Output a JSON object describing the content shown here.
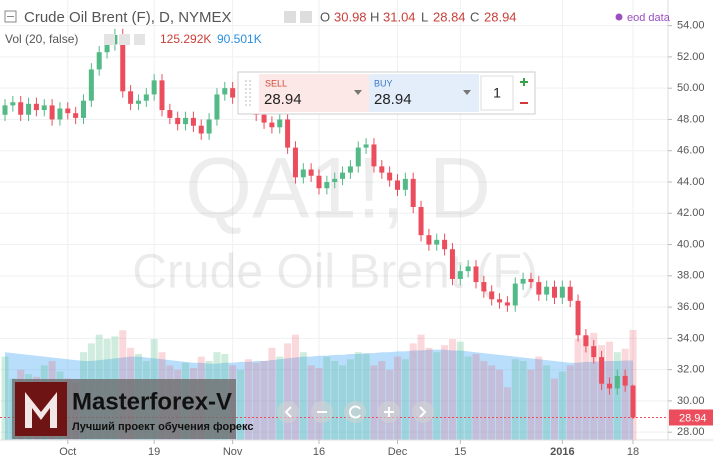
{
  "header": {
    "symbol": "Crude Oil Brent (F), D, NYMEX",
    "o_label": "O",
    "h_label": "H",
    "l_label": "L",
    "c_label": "C",
    "source": "eod data",
    "volume_title": "Vol (20, false)",
    "volume": "125.292K",
    "volume_ma": "90.501K"
  },
  "trade_panel": {
    "sell_label": "SELL",
    "buy_label": "BUY",
    "quantity": "1"
  },
  "watermark": {
    "line1": "QA1!, D",
    "line2": "Crude Oil Brent (F)"
  },
  "logo": {
    "name": "Masterforex-V",
    "tagline": "Лучший проект обучения форекс"
  },
  "chart_data": {
    "type": "candlestick",
    "categories": [
      null,
      null,
      null,
      null,
      null,
      null,
      null,
      null,
      "Oct",
      null,
      null,
      null,
      null,
      null,
      null,
      null,
      null,
      null,
      null,
      "19",
      null,
      null,
      null,
      null,
      null,
      null,
      null,
      null,
      null,
      "Nov",
      null,
      null,
      null,
      null,
      null,
      null,
      null,
      null,
      null,
      null,
      "16",
      null,
      null,
      null,
      null,
      null,
      null,
      null,
      null,
      null,
      "Dec",
      null,
      null,
      null,
      null,
      null,
      null,
      null,
      "15",
      null,
      null,
      null,
      null,
      null,
      null,
      null,
      null,
      null,
      null,
      null,
      null,
      "2016",
      null,
      null,
      null,
      null,
      null,
      null,
      null,
      null,
      "18"
    ],
    "open": [
      48.3,
      48.9,
      49.1,
      48.3,
      49.0,
      48.6,
      48.9,
      48.0,
      48.7,
      48.4,
      48.1,
      49.2,
      51.2,
      52.3,
      52.8,
      53.4,
      49.8,
      49.0,
      49.2,
      49.6,
      50.5,
      48.6,
      48.1,
      47.7,
      48.1,
      47.6,
      47.1,
      48.0,
      49.6,
      50.0,
      49.4,
      49.9,
      48.9,
      48.3,
      47.8,
      47.5,
      48.0,
      46.2,
      44.3,
      44.8,
      44.4,
      43.6,
      44.0,
      44.2,
      44.6,
      45.0,
      46.2,
      46.4,
      45.0,
      44.6,
      44.1,
      43.5,
      44.2,
      42.4,
      40.6,
      40.0,
      40.3,
      39.7,
      37.8,
      38.3,
      38.6,
      37.6,
      37.0,
      36.5,
      36.3,
      36.1,
      37.5,
      37.8,
      37.6,
      36.8,
      37.3,
      36.6,
      37.3,
      36.4,
      34.2,
      33.5,
      32.8,
      31.1,
      30.8,
      31.6,
      30.98
    ],
    "high": [
      49.3,
      49.5,
      49.5,
      49.4,
      49.4,
      49.3,
      49.3,
      49.1,
      49.1,
      48.8,
      49.6,
      51.6,
      52.7,
      53.2,
      53.8,
      53.8,
      50.2,
      49.6,
      50.0,
      50.9,
      50.9,
      49.0,
      48.5,
      48.5,
      48.5,
      48.0,
      48.4,
      50.0,
      50.4,
      50.4,
      50.3,
      50.3,
      49.3,
      48.7,
      48.2,
      48.4,
      48.4,
      46.6,
      45.2,
      45.2,
      44.8,
      44.4,
      44.6,
      45.0,
      45.4,
      46.6,
      46.8,
      46.8,
      45.4,
      45.0,
      44.5,
      44.6,
      44.6,
      42.8,
      41.0,
      40.7,
      40.7,
      40.1,
      38.7,
      39.0,
      39.0,
      38.0,
      37.4,
      36.9,
      36.7,
      37.9,
      38.2,
      38.2,
      38.0,
      37.7,
      37.7,
      37.7,
      37.7,
      36.8,
      34.6,
      33.9,
      33.2,
      31.5,
      32.0,
      32.0,
      31.04
    ],
    "low": [
      47.9,
      48.5,
      47.9,
      47.9,
      48.2,
      48.2,
      47.6,
      47.6,
      48.0,
      47.7,
      47.7,
      48.8,
      50.8,
      51.9,
      52.4,
      49.4,
      48.6,
      48.6,
      48.8,
      49.2,
      48.2,
      47.7,
      47.3,
      47.3,
      47.2,
      46.7,
      46.7,
      47.6,
      49.2,
      49.0,
      49.0,
      48.5,
      47.9,
      47.4,
      47.1,
      47.1,
      45.8,
      43.9,
      43.9,
      44.0,
      43.2,
      43.2,
      43.6,
      43.8,
      44.2,
      44.6,
      45.8,
      44.6,
      44.2,
      43.7,
      43.1,
      43.1,
      42.0,
      40.2,
      39.6,
      39.6,
      39.3,
      37.4,
      37.4,
      37.9,
      37.2,
      36.6,
      36.1,
      35.9,
      35.7,
      35.7,
      37.1,
      37.2,
      36.4,
      36.4,
      36.2,
      36.2,
      36.0,
      33.8,
      33.1,
      32.4,
      30.7,
      30.4,
      30.4,
      30.58,
      28.84
    ],
    "close": [
      48.9,
      49.1,
      48.3,
      49.0,
      48.6,
      48.9,
      48.0,
      48.7,
      48.4,
      48.1,
      49.2,
      51.2,
      52.3,
      52.8,
      53.4,
      49.8,
      49.0,
      49.2,
      49.6,
      50.5,
      48.6,
      48.1,
      47.7,
      48.1,
      47.6,
      47.1,
      48.0,
      49.6,
      50.0,
      49.4,
      49.9,
      48.9,
      48.3,
      47.8,
      47.5,
      48.0,
      46.2,
      44.3,
      44.8,
      44.4,
      43.6,
      44.0,
      44.2,
      44.6,
      45.0,
      46.2,
      46.4,
      45.0,
      44.6,
      44.1,
      43.5,
      44.2,
      42.4,
      40.6,
      40.0,
      40.3,
      39.7,
      37.8,
      38.3,
      38.6,
      37.6,
      37.0,
      36.5,
      36.3,
      36.1,
      37.5,
      37.8,
      37.6,
      36.8,
      37.3,
      36.6,
      37.3,
      36.4,
      34.2,
      33.5,
      32.8,
      31.1,
      30.8,
      31.6,
      30.98,
      28.94
    ],
    "up_color": "#53b987",
    "down_color": "#eb4d5c",
    "ylim": [
      27.5,
      55.0
    ],
    "yticks": [
      {
        "value": 28,
        "label": "28.00"
      },
      {
        "value": 30,
        "label": "30.00"
      },
      {
        "value": 32,
        "label": "32.00"
      },
      {
        "value": 34,
        "label": "34.00"
      },
      {
        "value": 36,
        "label": "36.00"
      },
      {
        "value": 38,
        "label": "38.00"
      },
      {
        "value": 40,
        "label": "40.00"
      },
      {
        "value": 42,
        "label": "42.00"
      },
      {
        "value": 44,
        "label": "44.00"
      },
      {
        "value": 46,
        "label": "46.00"
      },
      {
        "value": 48,
        "label": "48.00"
      },
      {
        "value": 50,
        "label": "50.00"
      },
      {
        "value": 52,
        "label": "52.00"
      },
      {
        "value": 54,
        "label": "54.00"
      }
    ],
    "grid": true,
    "volume": {
      "values": [
        95,
        70,
        80,
        75,
        72,
        85,
        90,
        78,
        70,
        65,
        100,
        110,
        120,
        115,
        118,
        125,
        105,
        98,
        90,
        115,
        100,
        85,
        80,
        88,
        82,
        95,
        90,
        100,
        98,
        85,
        80,
        92,
        88,
        90,
        105,
        95,
        110,
        120,
        100,
        85,
        82,
        95,
        90,
        85,
        92,
        100,
        98,
        85,
        90,
        80,
        95,
        92,
        110,
        120,
        105,
        100,
        108,
        115,
        112,
        95,
        98,
        90,
        85,
        80,
        60,
        92,
        90,
        80,
        95,
        85,
        70,
        78,
        85,
        115,
        118,
        122,
        108,
        112,
        100,
        104,
        125.292
      ],
      "ma_values": [
        100,
        99,
        98,
        97,
        96,
        95,
        94,
        93,
        92,
        91,
        90,
        90,
        91,
        92,
        93,
        94,
        95,
        95,
        94,
        93,
        92,
        91,
        90,
        89,
        88,
        88,
        87,
        87,
        88,
        88,
        89,
        89,
        90,
        90,
        91,
        92,
        93,
        94,
        95,
        95,
        96,
        96,
        97,
        97,
        98,
        98,
        99,
        99,
        100,
        100,
        101,
        101,
        102,
        102,
        103,
        103,
        103,
        102,
        102,
        101,
        100,
        99,
        98,
        97,
        96,
        95,
        94,
        93,
        92,
        91,
        90,
        89,
        88,
        88,
        89,
        89,
        90,
        90,
        90,
        90.5,
        90.501
      ],
      "up_color": "rgba(83,185,135,0.28)",
      "down_color": "rgba(235,77,92,0.22)",
      "ma_color": "rgba(100,181,246,0.45)"
    }
  }
}
